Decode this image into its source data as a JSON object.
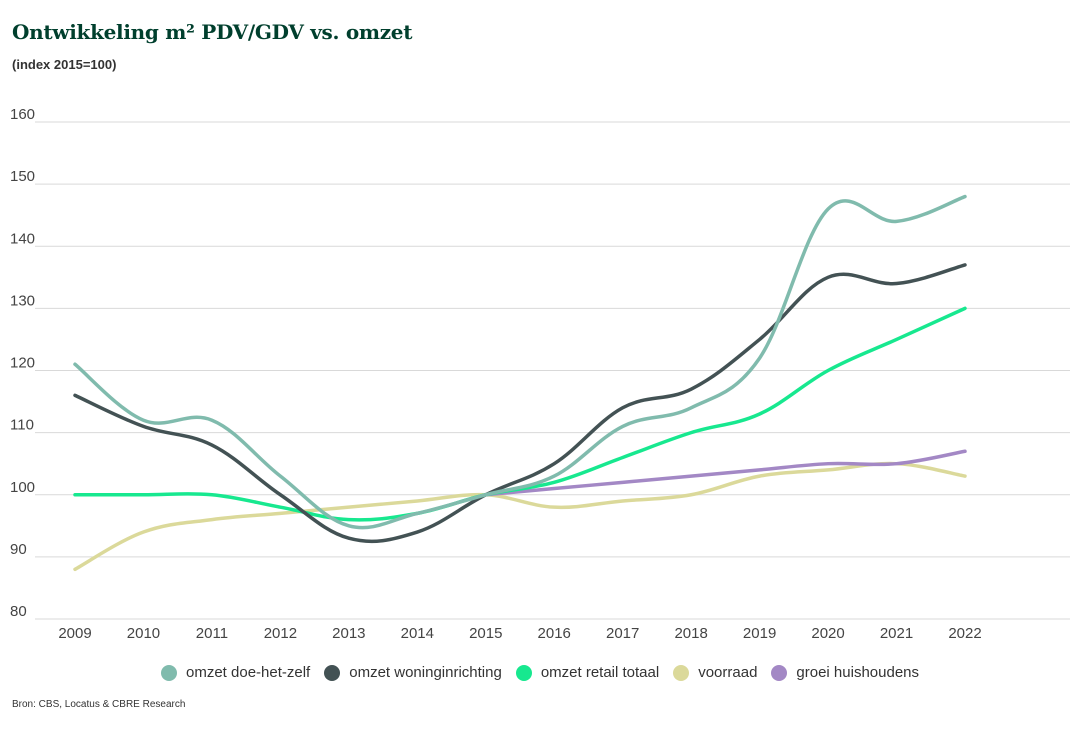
{
  "header": {
    "title": "Ontwikkeling m² PDV/GDV vs. omzet",
    "subtitle": "(index 2015=100)"
  },
  "footer": {
    "source": "Bron: CBS, Locatus & CBRE Research"
  },
  "chart_data": {
    "type": "line",
    "title": "Ontwikkeling m² PDV/GDV vs. omzet",
    "subtitle": "(index 2015=100)",
    "xlabel": "",
    "ylabel": "",
    "categories": [
      "2009",
      "2010",
      "2011",
      "2012",
      "2013",
      "2014",
      "2015",
      "2016",
      "2017",
      "2018",
      "2019",
      "2020",
      "2021",
      "2022"
    ],
    "ylim": [
      80,
      160
    ],
    "yticks": [
      80,
      90,
      100,
      110,
      120,
      130,
      140,
      150,
      160
    ],
    "grid": true,
    "legend_position": "bottom",
    "series": [
      {
        "name": "omzet doe-het-zelf",
        "color": "#80bbad",
        "values": [
          121,
          112,
          112,
          103,
          95,
          97,
          100,
          103,
          111,
          114,
          122,
          146,
          144,
          148
        ]
      },
      {
        "name": "omzet woninginrichting",
        "color": "#435254",
        "values": [
          116,
          111,
          108,
          100,
          93,
          94,
          100,
          105,
          114,
          117,
          125,
          135,
          134,
          137
        ]
      },
      {
        "name": "omzet retail totaal",
        "color": "#17e88f",
        "values": [
          100,
          100,
          100,
          98,
          96,
          97,
          100,
          102,
          106,
          110,
          113,
          120,
          125,
          130
        ]
      },
      {
        "name": "voorraad",
        "color": "#dbd99a",
        "values": [
          88,
          94,
          96,
          97,
          98,
          99,
          100,
          98,
          99,
          100,
          103,
          104,
          105,
          103
        ]
      },
      {
        "name": "groei huishoudens",
        "color": "#a388c5",
        "start_index": 6,
        "values": [
          null,
          null,
          null,
          null,
          null,
          null,
          100,
          101,
          102,
          103,
          104,
          105,
          105,
          107
        ]
      }
    ]
  }
}
